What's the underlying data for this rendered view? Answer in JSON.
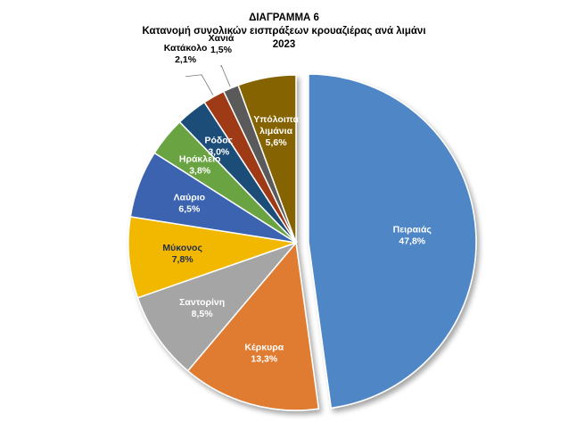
{
  "chart_data": {
    "type": "pie",
    "title_lines": [
      "ΔΙΑΓΡΑΜΜΑ 6",
      "Κατανομή συνολικών εισπράξεων κρουαζιέρας ανά λιμάνι",
      "2023"
    ],
    "slices": [
      {
        "label": "Πειραιάς",
        "value": 47.8,
        "value_label": "47,8%",
        "color": "#4f86c6",
        "label_color": "#ffffff",
        "exploded": true
      },
      {
        "label": "Κέρκυρα",
        "value": 13.3,
        "value_label": "13,3%",
        "color": "#e07b30",
        "label_color": "#ffffff"
      },
      {
        "label": "Σαντορίνη",
        "value": 8.5,
        "value_label": "8,5%",
        "color": "#a5a5a5",
        "label_color": "#ffffff"
      },
      {
        "label": "Μύκονος",
        "value": 7.8,
        "value_label": "7,8%",
        "color": "#f2b800",
        "label_color": "#1f2d50"
      },
      {
        "label": "Λαύριο",
        "value": 6.5,
        "value_label": "6,5%",
        "color": "#3b64b0",
        "label_color": "#ffffff"
      },
      {
        "label": "Ηράκλειο",
        "value": 3.8,
        "value_label": "3,8%",
        "color": "#6aa442",
        "label_color": "#ffffff"
      },
      {
        "label": "Ρόδος",
        "value": 3.0,
        "value_label": "3,0%",
        "color": "#1f4e79",
        "label_color": "#ffffff"
      },
      {
        "label": "Κατάκολο",
        "value": 2.1,
        "value_label": "2,1%",
        "color": "#9e3a12",
        "label_color": "#000000",
        "outside": true
      },
      {
        "label": "Χανιά",
        "value": 1.5,
        "value_label": "1,5%",
        "color": "#5a5a5a",
        "label_color": "#000000",
        "outside": true
      },
      {
        "label": "Υπόλοιπα λιμάνια",
        "value": 5.6,
        "value_label": "5,6%",
        "color": "#856400",
        "label_color": "#ffffff",
        "label_lines": [
          "Υπόλοιπα",
          "λιμάνια"
        ]
      }
    ],
    "legend": "none",
    "start_angle": "12 o'clock, clockwise"
  }
}
